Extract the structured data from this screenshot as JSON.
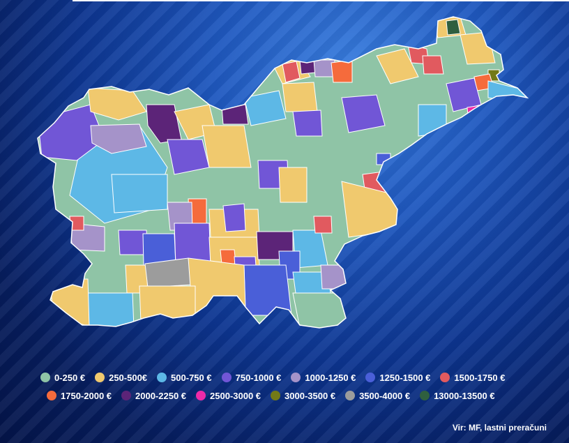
{
  "legend": [
    {
      "label": "0-250 €",
      "color": "#8fc4a6"
    },
    {
      "label": "250-500€",
      "color": "#f0c96e"
    },
    {
      "label": "500-750 €",
      "color": "#5db8e6"
    },
    {
      "label": "750-1000 €",
      "color": "#7156d6"
    },
    {
      "label": "1000-1250 €",
      "color": "#a593c9"
    },
    {
      "label": "1250-1500 €",
      "color": "#4a5fd8"
    },
    {
      "label": "1500-1750 €",
      "color": "#e15a5f"
    },
    {
      "label": "1750-2000 €",
      "color": "#f56b3c"
    },
    {
      "label": "2000-2250 €",
      "color": "#5c2478"
    },
    {
      "label": "2500-3000 €",
      "color": "#ee2aa8"
    },
    {
      "label": "3000-3500 €",
      "color": "#737a16"
    },
    {
      "label": "3500-4000 €",
      "color": "#9c9c9c"
    },
    {
      "label": "13000-13500 €",
      "color": "#2f5f3f"
    }
  ],
  "source": "Vir: MF, lastni preračuni"
}
